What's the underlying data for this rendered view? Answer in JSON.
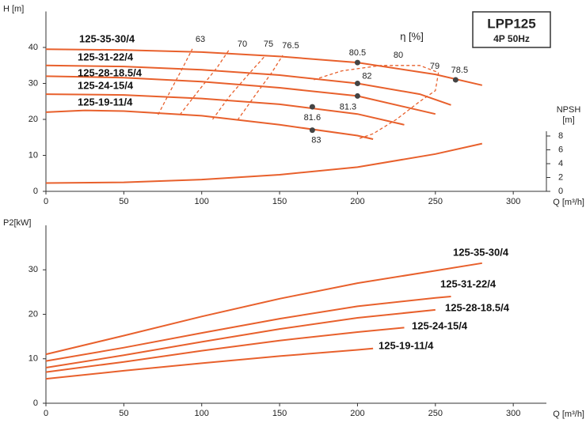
{
  "chart_data": [
    {
      "type": "line",
      "title": "LPP125",
      "subtitle": "4P 50Hz",
      "xlabel": "Q [m³/h]",
      "ylabel": "H [m]",
      "y2label": [
        "NPSH",
        "[m]"
      ],
      "annotation": "η [%]",
      "xlim": [
        0,
        320
      ],
      "xticks": [
        0,
        50,
        100,
        150,
        200,
        250,
        300
      ],
      "ylim": [
        0,
        50
      ],
      "yticks": [
        0,
        10,
        20,
        30,
        40
      ],
      "y2lim": [
        0,
        26
      ],
      "y2ticks": [
        0,
        2,
        4,
        6,
        8
      ],
      "series": [
        {
          "name": "125-35-30/4",
          "color": "#e8602c",
          "x": [
            0,
            50,
            100,
            150,
            200,
            250,
            280
          ],
          "values": [
            39.5,
            39.3,
            38.7,
            37.5,
            35.8,
            32.5,
            29.5
          ]
        },
        {
          "name": "125-31-22/4",
          "color": "#e8602c",
          "x": [
            0,
            50,
            100,
            150,
            200,
            240,
            260
          ],
          "values": [
            35,
            34.7,
            33.8,
            32.3,
            30,
            27,
            24
          ]
        },
        {
          "name": "125-28-18.5/4",
          "color": "#e8602c",
          "x": [
            0,
            50,
            100,
            150,
            200,
            250
          ],
          "values": [
            32,
            31.6,
            30.5,
            28.8,
            26.5,
            21.5
          ]
        },
        {
          "name": "125-24-15/4",
          "color": "#e8602c",
          "x": [
            0,
            50,
            100,
            150,
            200,
            230
          ],
          "values": [
            27,
            26.8,
            25.8,
            24.2,
            21.5,
            18.5
          ]
        },
        {
          "name": "125-19-11/4",
          "color": "#e8602c",
          "x": [
            0,
            25,
            50,
            100,
            150,
            200,
            210
          ],
          "values": [
            22,
            22.5,
            22.3,
            21,
            18.5,
            15.5,
            14.5
          ]
        },
        {
          "axis": "y2",
          "color": "#e8602c",
          "x": [
            0,
            50,
            100,
            150,
            200,
            250,
            280
          ],
          "values": [
            1.2,
            1.3,
            1.7,
            2.4,
            3.5,
            5.4,
            6.9
          ]
        }
      ],
      "iso_efficiency": [
        {
          "label": 63,
          "x": [
            72,
            80,
            88,
            94
          ],
          "values": [
            21.3,
            28,
            34.5,
            39.6
          ]
        },
        {
          "label": 70,
          "x": [
            86,
            98,
            110,
            118
          ],
          "values": [
            21.3,
            28,
            34.5,
            39.6
          ]
        },
        {
          "label": 75,
          "x": [
            107,
            118,
            131,
            141
          ],
          "values": [
            20,
            26.5,
            33,
            37.8
          ]
        },
        {
          "label": 76.5,
          "x": [
            123,
            134,
            145,
            152
          ],
          "values": [
            19.8,
            26.5,
            33,
            37.8
          ]
        },
        {
          "label": 80,
          "x": [
            172,
            190,
            215,
            240,
            252
          ],
          "values": [
            31,
            33.5,
            35,
            35,
            33
          ]
        },
        {
          "label": 79,
          "x": [
            252,
            250,
            240,
            225,
            210,
            200
          ],
          "values": [
            33,
            28,
            25,
            20,
            16,
            14.5
          ]
        }
      ],
      "points": [
        {
          "x": 200,
          "y": 35.8,
          "label": 80.5
        },
        {
          "x": 263,
          "y": 31,
          "label": 78.5
        },
        {
          "x": 200,
          "y": 30,
          "label": 82
        },
        {
          "x": 200,
          "y": 26.5,
          "label": 81.3
        },
        {
          "x": 171,
          "y": 23.5,
          "label": 81.6
        },
        {
          "x": 171,
          "y": 17,
          "label": 83
        }
      ]
    },
    {
      "type": "line",
      "xlabel": "Q [m³/h]",
      "ylabel": "P2[kW]",
      "xlim": [
        0,
        320
      ],
      "xticks": [
        0,
        50,
        100,
        150,
        200,
        250,
        300
      ],
      "ylim": [
        0,
        40
      ],
      "yticks": [
        0,
        10,
        20,
        30
      ],
      "series": [
        {
          "name": "125-35-30/4",
          "color": "#e8602c",
          "x": [
            0,
            50,
            100,
            150,
            200,
            250,
            280
          ],
          "values": [
            11,
            15.2,
            19.5,
            23.5,
            27,
            29.8,
            31.5
          ]
        },
        {
          "name": "125-31-22/4",
          "color": "#e8602c",
          "x": [
            0,
            50,
            100,
            150,
            200,
            250,
            260
          ],
          "values": [
            9.5,
            12.5,
            15.8,
            19,
            21.8,
            23.7,
            24
          ]
        },
        {
          "name": "125-28-18.5/4",
          "color": "#e8602c",
          "x": [
            0,
            50,
            100,
            150,
            200,
            250
          ],
          "values": [
            8,
            10.8,
            13.8,
            16.7,
            19.2,
            21
          ]
        },
        {
          "name": "125-24-15/4",
          "color": "#e8602c",
          "x": [
            0,
            50,
            100,
            150,
            200,
            230
          ],
          "values": [
            7,
            9.3,
            11.8,
            14.1,
            16,
            17
          ]
        },
        {
          "name": "125-19-11/4",
          "color": "#e8602c",
          "x": [
            0,
            50,
            100,
            150,
            200,
            210
          ],
          "values": [
            5.5,
            7.3,
            9,
            10.6,
            12,
            12.3
          ]
        }
      ]
    }
  ]
}
